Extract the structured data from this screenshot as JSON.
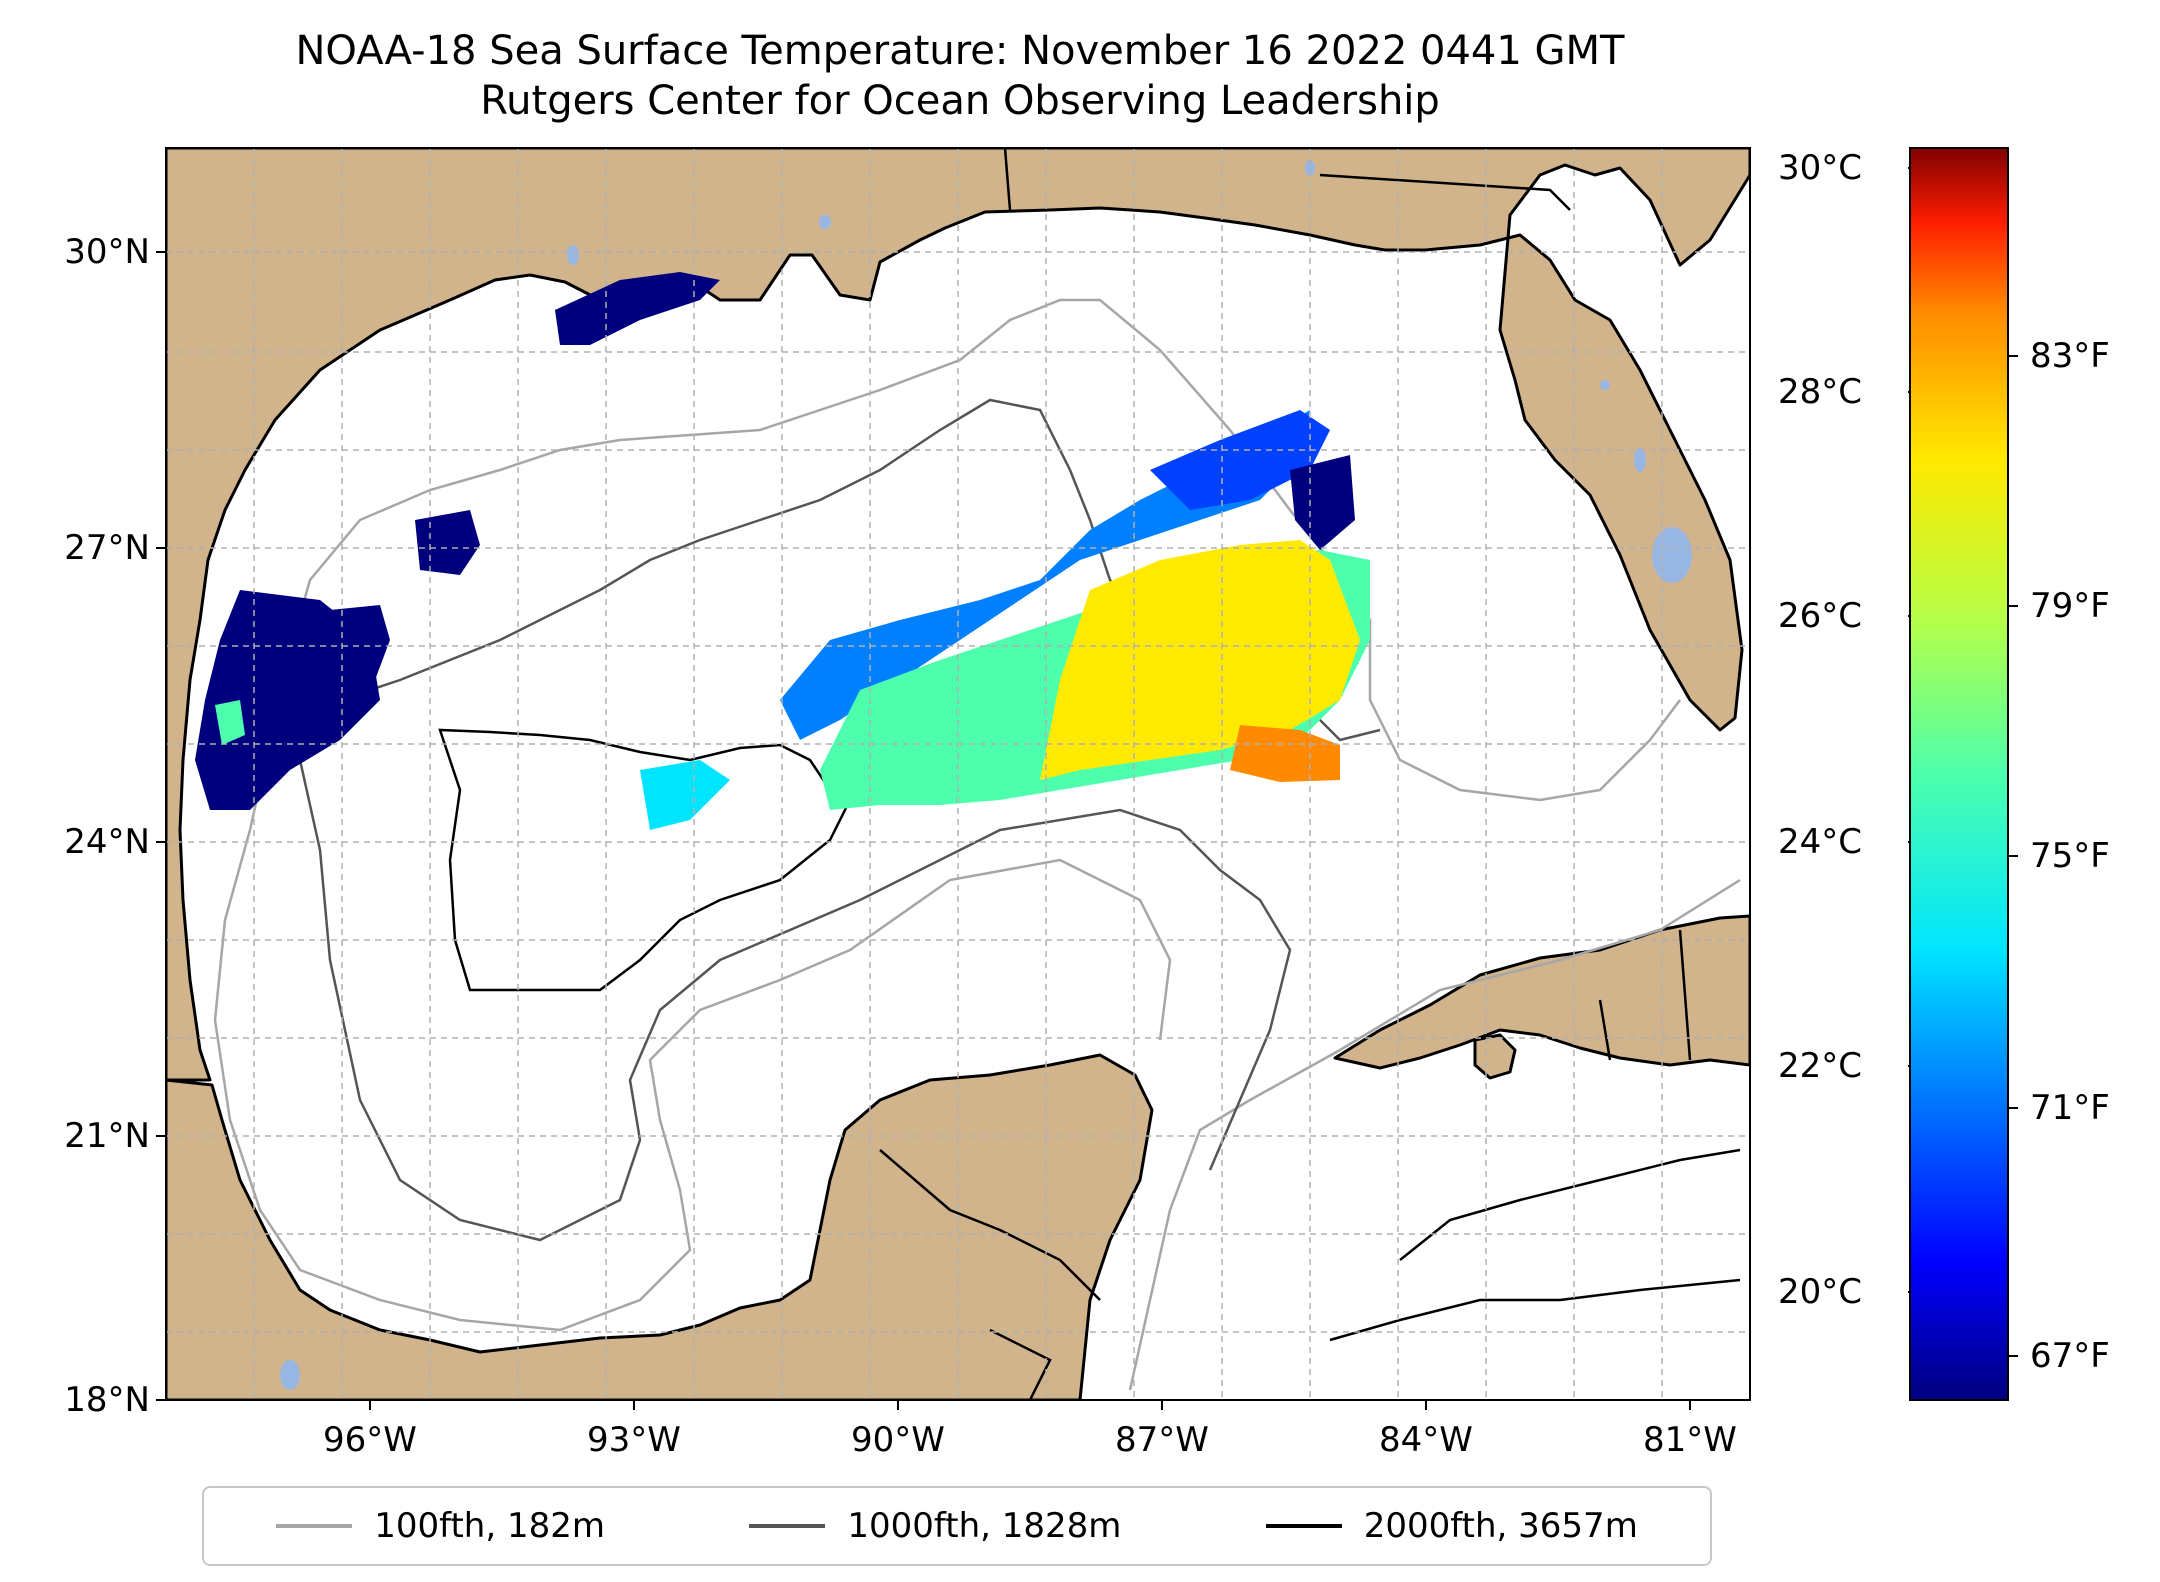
{
  "title": {
    "line1": "NOAA-18 Sea Surface Temperature: November 16 2022 0441 GMT",
    "line2": "Rutgers Center for Ocean Observing Leadership"
  },
  "axes": {
    "lat_ticks": [
      "30°N",
      "27°N",
      "24°N",
      "21°N",
      "18°N"
    ],
    "lon_ticks": [
      "96°W",
      "93°W",
      "90°W",
      "87°W",
      "84°W",
      "81°W"
    ]
  },
  "colorbar": {
    "celsius_ticks": [
      "30°C",
      "28°C",
      "26°C",
      "24°C",
      "22°C",
      "20°C"
    ],
    "fahrenheit_ticks": [
      "83°F",
      "79°F",
      "75°F",
      "71°F",
      "67°F"
    ],
    "colors": [
      "#00007f",
      "#0000ff",
      "#0080ff",
      "#00e5ff",
      "#4dffac",
      "#b3ff4a",
      "#ffea00",
      "#ff8a00",
      "#ff1e00",
      "#800000"
    ]
  },
  "legend": {
    "items": [
      {
        "label": "100fth, 182m",
        "color": "#a6a6a6"
      },
      {
        "label": "1000fth, 1828m",
        "color": "#555555"
      },
      {
        "label": "2000fth, 3657m",
        "color": "#000000"
      }
    ]
  },
  "colors": {
    "land": "#d2b48c",
    "water": "#ffffff",
    "lake": "#97b6e1",
    "grid": "#b0b0b0"
  }
}
